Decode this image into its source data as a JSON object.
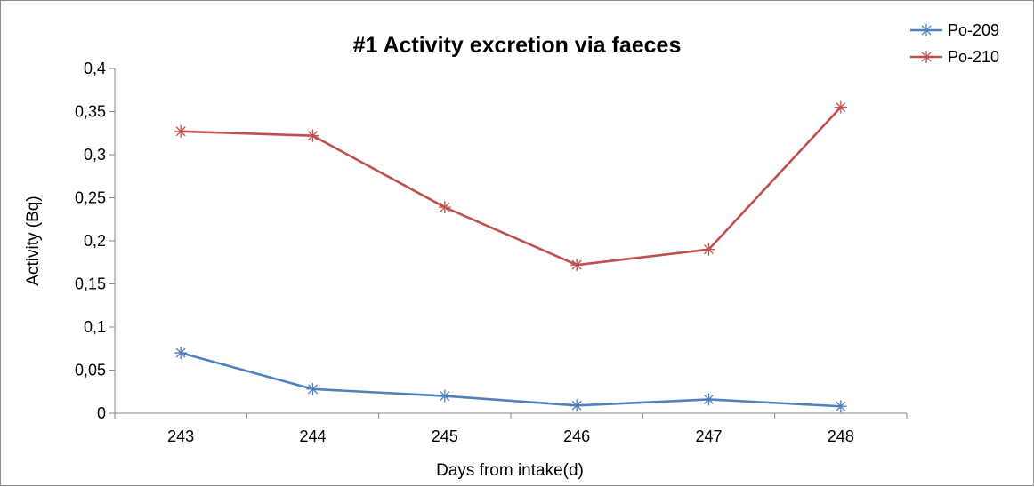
{
  "chart_data": {
    "type": "line",
    "title": "#1 Activity excretion via faeces",
    "xlabel": "Days from intake(d)",
    "ylabel": "Activity (Bq)",
    "categories": [
      "243",
      "244",
      "245",
      "246",
      "247",
      "248"
    ],
    "ylim": [
      0,
      0.4
    ],
    "yticks": [
      "0",
      "0,05",
      "0,1",
      "0,15",
      "0,2",
      "0,25",
      "0,3",
      "0,35",
      "0,4"
    ],
    "grid": false,
    "legend_position": "top-right",
    "marker": "asterisk",
    "series": [
      {
        "name": "Po-209",
        "color": "#4f81bd",
        "values": [
          0.07,
          0.028,
          0.02,
          0.009,
          0.016,
          0.008
        ]
      },
      {
        "name": "Po-210",
        "color": "#c0504d",
        "values": [
          0.327,
          0.322,
          0.239,
          0.172,
          0.19,
          0.355
        ]
      }
    ]
  }
}
